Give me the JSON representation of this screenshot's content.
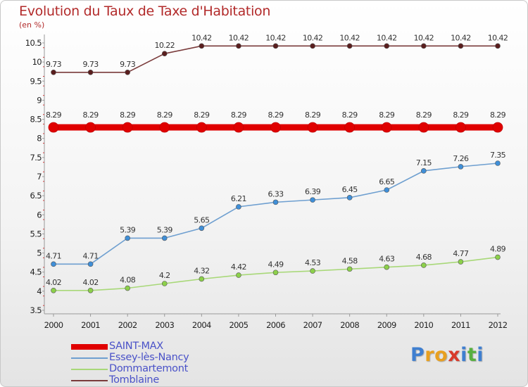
{
  "chart_data": {
    "type": "line",
    "title": "Evolution du Taux de Taxe d'Habitation",
    "unit_label": "(en %)",
    "categories": [
      "2000",
      "2001",
      "2002",
      "2003",
      "2004",
      "2005",
      "2006",
      "2007",
      "2008",
      "2009",
      "2010",
      "2011",
      "2012"
    ],
    "ylim": [
      3.5,
      10.5
    ],
    "yticks": [
      "3.5",
      "4",
      "4.5",
      "5",
      "5.5",
      "6",
      "6.5",
      "7",
      "7.5",
      "8",
      "8.5",
      "9",
      "9.5",
      "10",
      "10.5"
    ],
    "grid": false,
    "legend_position": "bottom-left",
    "series": [
      {
        "name": "SAINT-MAX",
        "color": "#e00000",
        "marker": "#e00000",
        "values": [
          8.29,
          8.29,
          8.29,
          8.29,
          8.29,
          8.29,
          8.29,
          8.29,
          8.29,
          8.29,
          8.29,
          8.29,
          8.29
        ],
        "labels": [
          "8.29",
          "8.29",
          "8.29",
          "8.29",
          "8.29",
          "8.29",
          "8.29",
          "8.29",
          "8.29",
          "8.29",
          "8.29",
          "8.29",
          "8.29"
        ]
      },
      {
        "name": "Essey-lès-Nancy",
        "color": "#6e9fd0",
        "marker": "#3f8fd8",
        "values": [
          4.71,
          4.71,
          5.39,
          5.39,
          5.65,
          6.21,
          6.33,
          6.39,
          6.45,
          6.65,
          7.15,
          7.26,
          7.35
        ],
        "labels": [
          "4.71",
          "4.71",
          "5.39",
          "5.39",
          "5.65",
          "6.21",
          "6.33",
          "6.39",
          "6.45",
          "6.65",
          "7.15",
          "7.26",
          "7.35"
        ]
      },
      {
        "name": "Dommartemont",
        "color": "#a8d878",
        "marker": "#8cd04a",
        "values": [
          4.02,
          4.02,
          4.08,
          4.2,
          4.32,
          4.42,
          4.49,
          4.53,
          4.58,
          4.63,
          4.68,
          4.77,
          4.89
        ],
        "labels": [
          "4.02",
          "4.02",
          "4.08",
          "4.2",
          "4.32",
          "4.42",
          "4.49",
          "4.53",
          "4.58",
          "4.63",
          "4.68",
          "4.77",
          "4.89"
        ]
      },
      {
        "name": "Tomblaine",
        "color": "#7a3b3b",
        "marker": "#5a1e1e",
        "values": [
          9.73,
          9.73,
          9.73,
          10.22,
          10.42,
          10.42,
          10.42,
          10.42,
          10.42,
          10.42,
          10.42,
          10.42,
          10.42
        ],
        "labels": [
          "9.73",
          "9.73",
          "9.73",
          "10.22",
          "10.42",
          "10.42",
          "10.42",
          "10.42",
          "10.42",
          "10.42",
          "10.42",
          "10.42",
          "10.42"
        ]
      }
    ]
  },
  "brand": {
    "letters": [
      {
        "ch": "P",
        "color": "#3f7fd0"
      },
      {
        "ch": "r",
        "color": "#e8a020"
      },
      {
        "ch": "o",
        "color": "#e8a020"
      },
      {
        "ch": "x",
        "color": "#d83a2a"
      },
      {
        "ch": "i",
        "color": "#3f7fd0"
      },
      {
        "ch": "t",
        "color": "#58b040"
      },
      {
        "ch": "i",
        "color": "#3f7fd0"
      }
    ]
  }
}
